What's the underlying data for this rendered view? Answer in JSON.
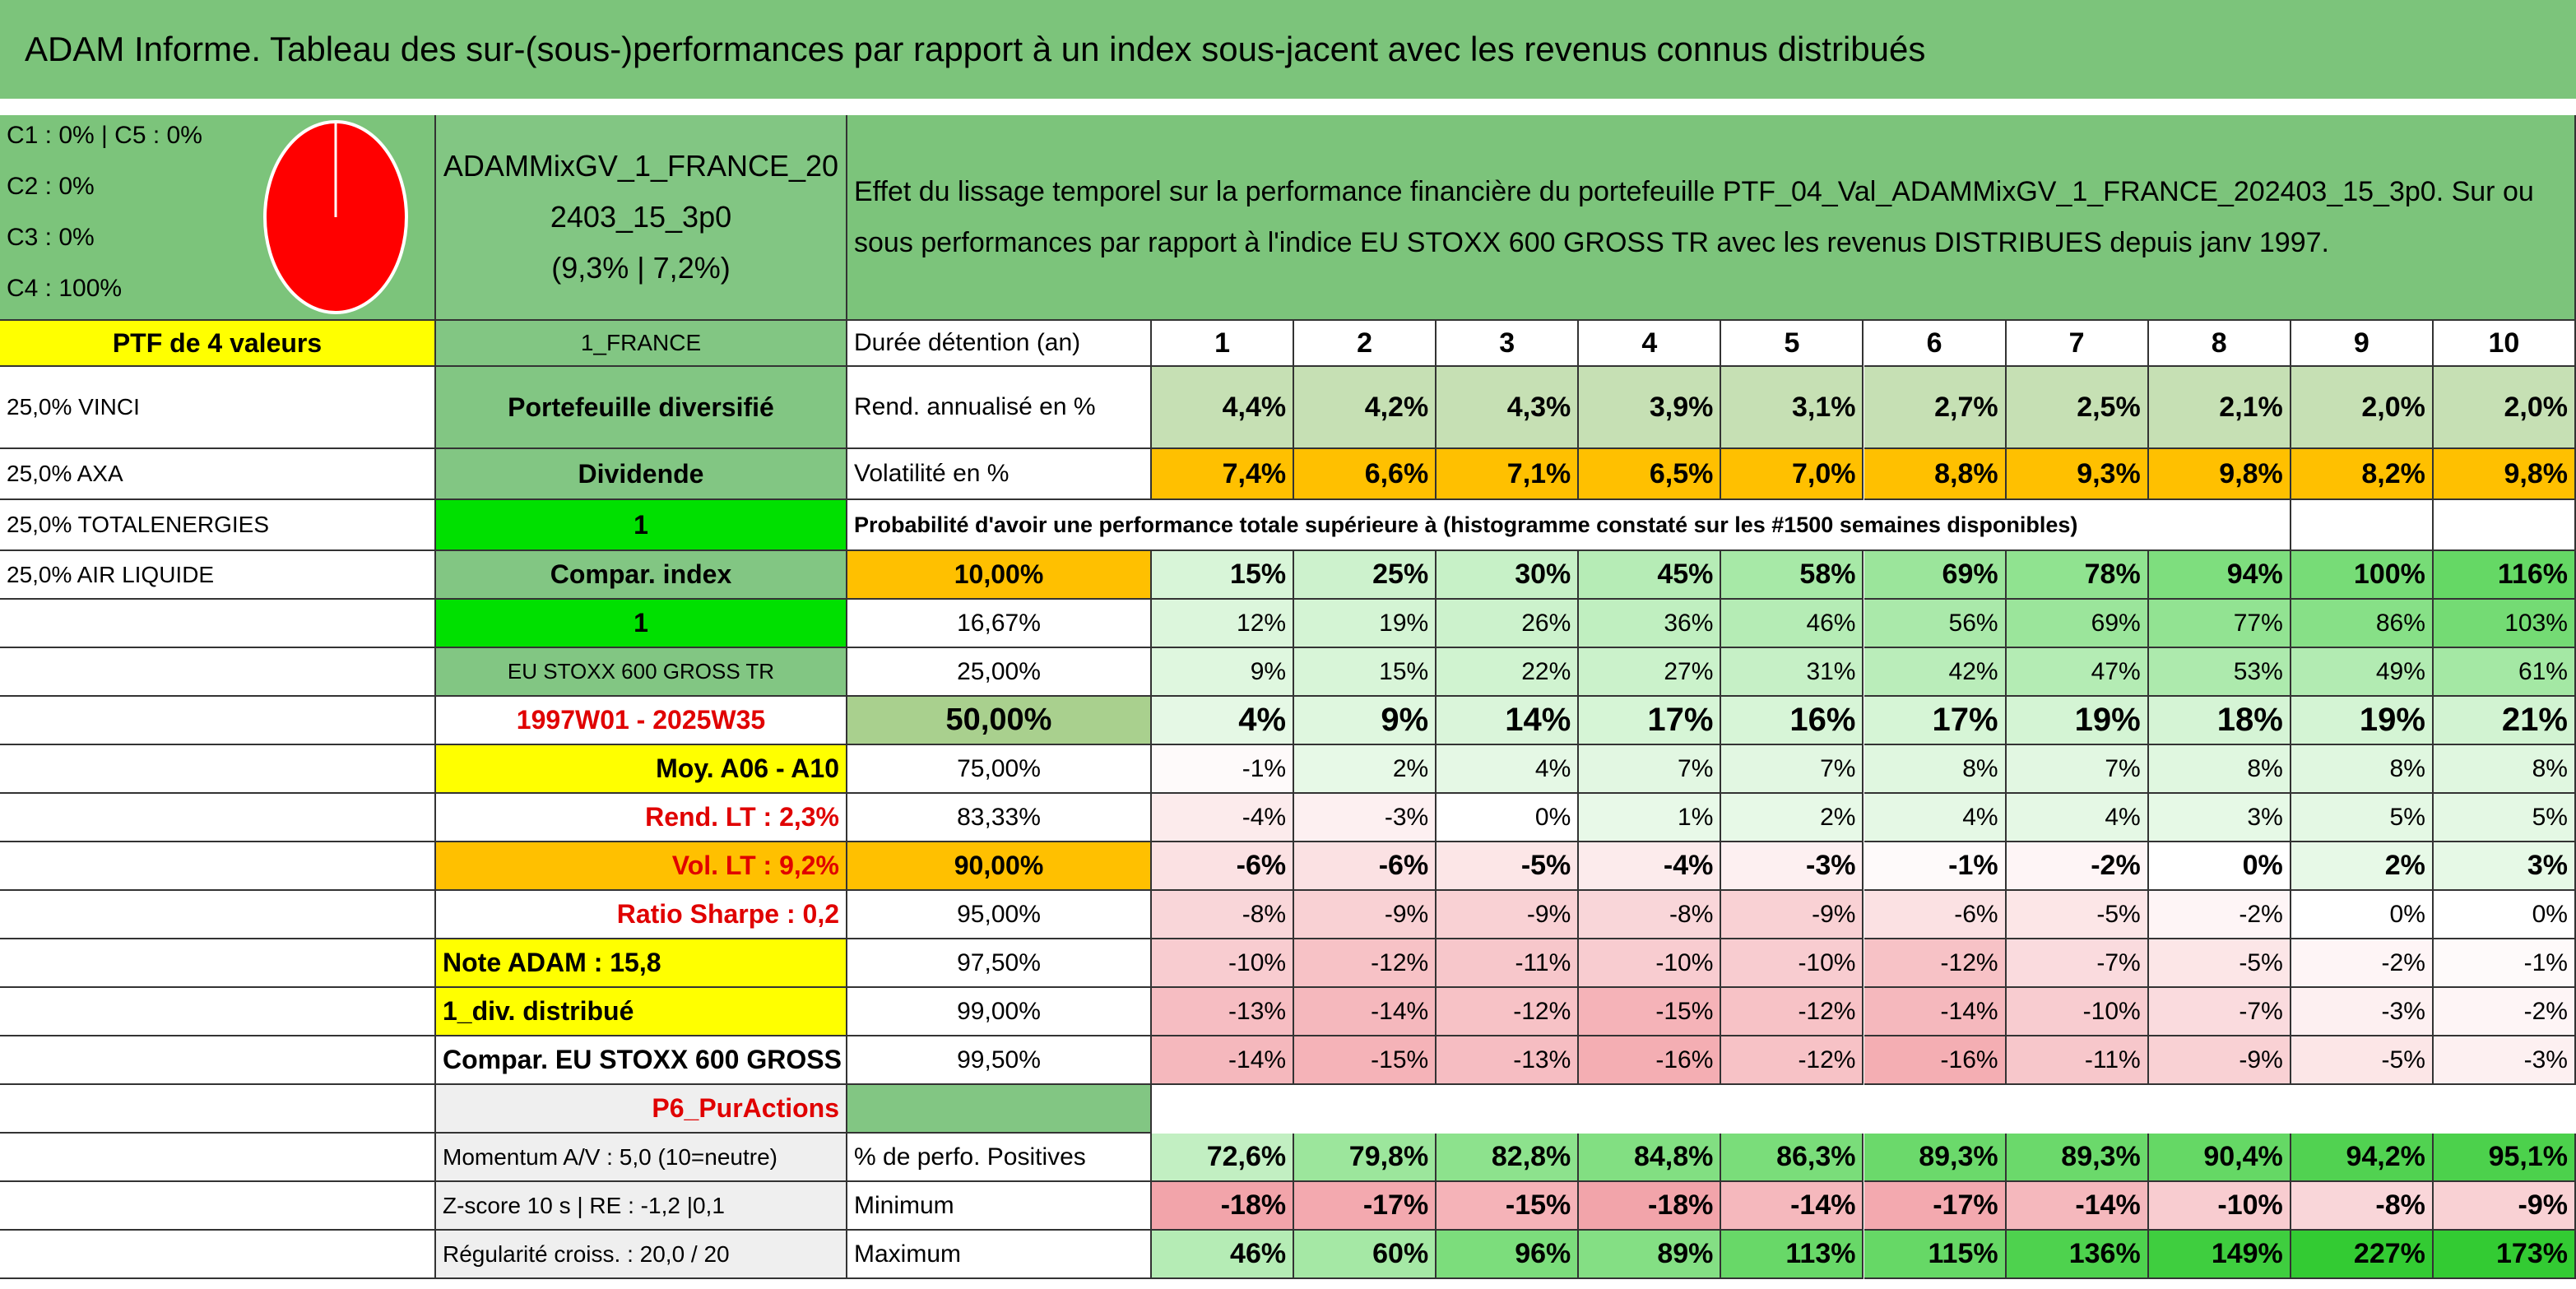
{
  "header": {
    "title": "ADAM Informe. Tableau des sur-(sous-)performances par rapport à un index sous-jacent avec les revenus connus distribués"
  },
  "summary": {
    "classes": [
      "C1 : 0% | C5 : 0%",
      "C2 : 0%",
      "C3 : 0%",
      "C4 : 100%"
    ],
    "portfolio_name": "ADAMMixGV_1_FRANCE_202403_15_3p0",
    "ratios": "(9,3% | 7,2%)",
    "description": "Effet du lissage temporel sur la performance financière du portefeuille PTF_04_Val_ADAMMixGV_1_FRANCE_202403_15_3p0. Sur ou sous performances par rapport à l'indice EU STOXX 600 GROSS TR avec les revenus DISTRIBUES depuis janv 1997."
  },
  "table": {
    "rows": [
      {
        "cells": [
          "PTF de 4 valeurs",
          "1_FRANCE",
          "Durée détention (an)"
        ],
        "values": [
          "1",
          "2",
          "3",
          "4",
          "5",
          "6",
          "7",
          "8",
          "9",
          "10"
        ]
      },
      {
        "cells": [
          "25,0% VINCI",
          "Portefeuille diversifié",
          "Rend. annualisé en %"
        ],
        "values": [
          "4,4%",
          "4,2%",
          "4,3%",
          "3,9%",
          "3,1%",
          "2,7%",
          "2,5%",
          "2,1%",
          "2,0%",
          "2,0%"
        ]
      },
      {
        "cells": [
          "25,0% AXA",
          "Dividende",
          "Volatilité en %"
        ],
        "values": [
          "7,4%",
          "6,6%",
          "7,1%",
          "6,5%",
          "7,0%",
          "8,8%",
          "9,3%",
          "9,8%",
          "8,2%",
          "9,8%"
        ]
      },
      {
        "cells": [
          "25,0% TOTALENERGIES",
          "1",
          "Probabilité d'avoir une performance totale supérieure à (histogramme constaté sur les #1500 semaines disponibles)"
        ]
      },
      {
        "cells": [
          "25,0% AIR LIQUIDE",
          "Compar. index",
          "10,00%"
        ],
        "values": [
          "15%",
          "25%",
          "30%",
          "45%",
          "58%",
          "69%",
          "78%",
          "94%",
          "100%",
          "116%"
        ]
      },
      {
        "cells": [
          null,
          "1",
          "16,67%"
        ],
        "values": [
          "12%",
          "19%",
          "26%",
          "36%",
          "46%",
          "56%",
          "69%",
          "77%",
          "86%",
          "103%"
        ]
      },
      {
        "cells": [
          null,
          "EU STOXX 600 GROSS TR",
          "25,00%"
        ],
        "values": [
          "9%",
          "15%",
          "22%",
          "27%",
          "31%",
          "42%",
          "47%",
          "53%",
          "49%",
          "61%"
        ]
      },
      {
        "cells": [
          null,
          "1997W01 - 2025W35",
          "50,00%"
        ],
        "values": [
          "4%",
          "9%",
          "14%",
          "17%",
          "16%",
          "17%",
          "19%",
          "18%",
          "19%",
          "21%"
        ]
      },
      {
        "cells": [
          null,
          "Moy. A06 - A10",
          "75,00%"
        ],
        "values": [
          "-1%",
          "2%",
          "4%",
          "7%",
          "7%",
          "8%",
          "7%",
          "8%",
          "8%",
          "8%"
        ]
      },
      {
        "cells": [
          null,
          "Rend. LT : 2,3%",
          "83,33%"
        ],
        "values": [
          "-4%",
          "-3%",
          "0%",
          "1%",
          "2%",
          "4%",
          "4%",
          "3%",
          "5%",
          "5%"
        ]
      },
      {
        "cells": [
          null,
          "Vol. LT : 9,2%",
          "90,00%"
        ],
        "values": [
          "-6%",
          "-6%",
          "-5%",
          "-4%",
          "-3%",
          "-1%",
          "-2%",
          "0%",
          "2%",
          "3%"
        ]
      },
      {
        "cells": [
          null,
          "Ratio Sharpe : 0,2",
          "95,00%"
        ],
        "values": [
          "-8%",
          "-9%",
          "-9%",
          "-8%",
          "-9%",
          "-6%",
          "-5%",
          "-2%",
          "0%",
          "0%"
        ]
      },
      {
        "cells": [
          null,
          "Note ADAM : 15,8",
          "97,50%"
        ],
        "values": [
          "-10%",
          "-12%",
          "-11%",
          "-10%",
          "-10%",
          "-12%",
          "-7%",
          "-5%",
          "-2%",
          "-1%"
        ]
      },
      {
        "cells": [
          null,
          "1_div. distribué",
          "99,00%"
        ],
        "values": [
          "-13%",
          "-14%",
          "-12%",
          "-15%",
          "-12%",
          "-14%",
          "-10%",
          "-7%",
          "-3%",
          "-2%"
        ]
      },
      {
        "cells": [
          null,
          "Compar. EU STOXX 600 GROSS TR",
          "99,50%"
        ],
        "values": [
          "-14%",
          "-15%",
          "-13%",
          "-16%",
          "-12%",
          "-16%",
          "-11%",
          "-9%",
          "-5%",
          "-3%"
        ]
      },
      {
        "cells": [
          null,
          "P6_PurActions",
          null
        ]
      },
      {
        "cells": [
          null,
          "Momentum A/V : 5,0 (10=neutre)",
          "% de perfo. Positives"
        ],
        "values": [
          "72,6%",
          "79,8%",
          "82,8%",
          "84,8%",
          "86,3%",
          "89,3%",
          "89,3%",
          "90,4%",
          "94,2%",
          "95,1%"
        ]
      },
      {
        "cells": [
          null,
          "Z-score 10 s | RE : -1,2 |0,1",
          "Minimum"
        ],
        "values": [
          "-18%",
          "-17%",
          "-15%",
          "-18%",
          "-14%",
          "-17%",
          "-14%",
          "-10%",
          "-8%",
          "-9%"
        ]
      },
      {
        "cells": [
          null,
          "Régularité croiss. : 20,0 / 20",
          "Maximum"
        ],
        "values": [
          "46%",
          "60%",
          "96%",
          "89%",
          "113%",
          "115%",
          "136%",
          "149%",
          "227%",
          "173%"
        ]
      }
    ]
  }
}
